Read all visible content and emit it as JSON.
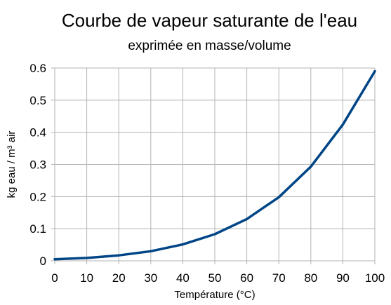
{
  "chart_data": {
    "type": "line",
    "title": "Courbe de vapeur saturante de l'eau",
    "subtitle": "exprimée en masse/volume",
    "xlabel": "Température (°C)",
    "ylabel": "kg eau / m³ air",
    "x": [
      0,
      10,
      20,
      30,
      40,
      50,
      60,
      70,
      80,
      90,
      100
    ],
    "series": [
      {
        "values": [
          0.005,
          0.009,
          0.017,
          0.03,
          0.051,
          0.083,
          0.13,
          0.198,
          0.293,
          0.424,
          0.59
        ]
      }
    ],
    "xlim": [
      0,
      100
    ],
    "ylim": [
      0,
      0.6
    ],
    "xticks": [
      "0",
      "10",
      "20",
      "30",
      "40",
      "50",
      "60",
      "70",
      "80",
      "90",
      "100"
    ],
    "yticks": [
      "0",
      "0.1",
      "0.2",
      "0.3",
      "0.4",
      "0.5",
      "0.6"
    ],
    "grid": true,
    "line_color": "#004586"
  }
}
